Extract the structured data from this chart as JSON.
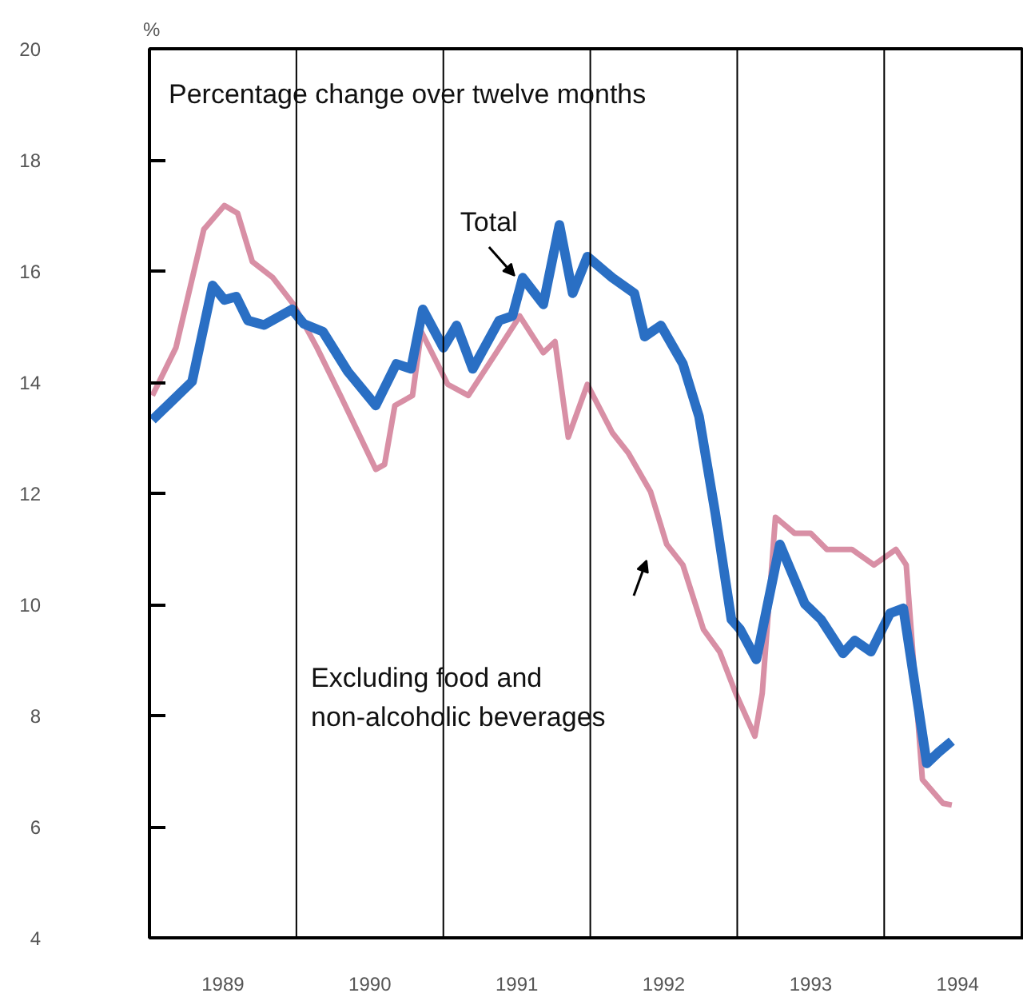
{
  "chart_data": {
    "type": "line",
    "title": "Percentage change over twelve months",
    "ylabel": "%",
    "xlim": [
      1989,
      1994.95
    ],
    "ylim": [
      4,
      20
    ],
    "xticks": [
      {
        "value": 1989.5,
        "label": "1989"
      },
      {
        "value": 1990.5,
        "label": "1990"
      },
      {
        "value": 1991.5,
        "label": "1991"
      },
      {
        "value": 1992.5,
        "label": "1992"
      },
      {
        "value": 1993.5,
        "label": "1993"
      },
      {
        "value": 1994.5,
        "label": "1994"
      }
    ],
    "yticks": [
      4,
      6,
      8,
      10,
      12,
      14,
      16,
      18,
      20
    ],
    "grid": false,
    "marker": "none",
    "line_style": "solid",
    "ref_lines": [
      {
        "axis": "x",
        "value": 1990,
        "color": "#000000"
      },
      {
        "axis": "x",
        "value": 1991,
        "color": "#000000"
      },
      {
        "axis": "x",
        "value": 1992,
        "color": "#000000"
      },
      {
        "axis": "x",
        "value": 1993,
        "color": "#000000"
      },
      {
        "axis": "x",
        "value": 1994,
        "color": "#000000"
      }
    ],
    "annotations": [
      {
        "text": "Total",
        "x": 1991.55,
        "y": 15.8
      },
      "Excluding food and\nnon-alcoholic beverages"
    ],
    "series": [
      {
        "color": "#d88fa5",
        "x": [
          1989.02,
          1989.18,
          1989.37,
          1989.51,
          1989.6,
          1989.7,
          1989.84,
          1989.98,
          1990.14,
          1990.3,
          1990.54,
          1990.6,
          1990.67,
          1990.79,
          1990.85,
          1991.03,
          1991.17,
          1991.36,
          1991.52,
          1991.68,
          1991.76,
          1991.85,
          1991.98,
          1992.15,
          1992.26,
          1992.41,
          1992.52,
          1992.63,
          1992.77,
          1992.88,
          1992.99,
          1993.12,
          1993.17,
          1993.26,
          1993.39,
          1993.5,
          1993.61,
          1993.78,
          1993.93,
          1994.08,
          1994.15,
          1994.26,
          1994.4,
          1994.46
        ],
        "values": [
          13.76,
          14.62,
          16.75,
          17.18,
          17.04,
          16.17,
          15.88,
          15.4,
          14.62,
          13.76,
          12.43,
          12.52,
          13.58,
          13.76,
          14.91,
          13.96,
          13.76,
          14.53,
          15.19,
          14.53,
          14.73,
          13.01,
          13.96,
          13.09,
          12.72,
          12.03,
          11.08,
          10.71,
          9.55,
          9.15,
          8.4,
          7.63,
          8.4,
          11.57,
          11.28,
          11.28,
          10.99,
          10.99,
          10.71,
          10.99,
          10.71,
          6.85,
          6.42,
          6.39
        ]
      },
      {
        "color": "#2a6fc4",
        "x": [
          1989.02,
          1989.29,
          1989.43,
          1989.51,
          1989.59,
          1989.67,
          1989.78,
          1989.97,
          1990.05,
          1990.18,
          1990.35,
          1990.54,
          1990.68,
          1990.78,
          1990.86,
          1991.0,
          1991.09,
          1991.2,
          1991.38,
          1991.47,
          1991.54,
          1991.68,
          1991.79,
          1991.88,
          1991.98,
          1992.15,
          1992.3,
          1992.37,
          1992.48,
          1992.63,
          1992.74,
          1992.85,
          1992.96,
          1993.02,
          1993.13,
          1993.29,
          1993.46,
          1993.57,
          1993.72,
          1993.8,
          1993.91,
          1994.04,
          1994.13,
          1994.29,
          1994.37,
          1994.46
        ],
        "values": [
          13.32,
          14.01,
          15.74,
          15.48,
          15.54,
          15.11,
          15.03,
          15.31,
          15.05,
          14.91,
          14.19,
          13.58,
          14.33,
          14.24,
          15.31,
          14.62,
          15.02,
          14.24,
          15.11,
          15.19,
          15.88,
          15.4,
          16.83,
          15.6,
          16.26,
          15.88,
          15.6,
          14.82,
          15.02,
          14.33,
          13.38,
          11.65,
          9.73,
          9.55,
          9.01,
          11.08,
          10.01,
          9.73,
          9.12,
          9.35,
          9.15,
          9.84,
          9.93,
          7.14,
          7.34,
          7.54
        ]
      }
    ]
  }
}
